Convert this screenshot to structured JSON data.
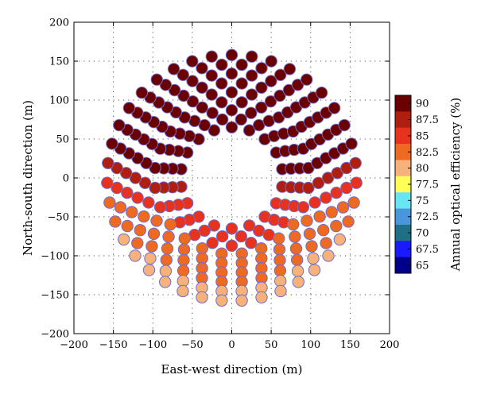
{
  "chart_data": {
    "type": "scatter",
    "title": "",
    "xlabel": "East-west direction (m)",
    "ylabel": "North-south direction (m)",
    "xlim": [
      -200,
      200
    ],
    "ylim": [
      -200,
      200
    ],
    "xticks": [
      -200,
      -150,
      -100,
      -50,
      0,
      50,
      100,
      150,
      200
    ],
    "yticks": [
      -200,
      -150,
      -100,
      -50,
      0,
      50,
      100,
      150,
      200
    ],
    "xtick_labels": [
      "−200",
      "−150",
      "−100",
      "−50",
      "0",
      "50",
      "100",
      "150",
      "200"
    ],
    "ytick_labels": [
      "−200",
      "−150",
      "−100",
      "−50",
      "0",
      "50",
      "100",
      "150",
      "200"
    ],
    "grid": "dotted",
    "marker_edge_color": "#6a6fd0",
    "layout": "radial-stagger",
    "rings": [
      {
        "radius": 65,
        "count": 18,
        "phase": 0
      },
      {
        "radius": 76,
        "count": 20,
        "phase": 0.5
      },
      {
        "radius": 87,
        "count": 22,
        "phase": 0
      },
      {
        "radius": 98,
        "count": 24,
        "phase": 0.5
      },
      {
        "radius": 110,
        "count": 27,
        "phase": 0
      },
      {
        "radius": 122,
        "count": 30,
        "phase": 0.5
      },
      {
        "radius": 134,
        "count": 33,
        "phase": 0
      },
      {
        "radius": 146,
        "count": 36,
        "phase": 0.5
      },
      {
        "radius": 158,
        "count": 39,
        "phase": 0
      }
    ],
    "colorbar": {
      "label": "Annual optical efficiency (%)",
      "ticks": [
        "90",
        "87.5",
        "85",
        "82.5",
        "80",
        "77.5",
        "75",
        "72.5",
        "70",
        "67.5",
        "65"
      ],
      "colors": [
        "#6b0000",
        "#b01e10",
        "#e8321e",
        "#ee6a22",
        "#f6b27a",
        "#ffff55",
        "#66e6f2",
        "#4a96dc",
        "#1f6f86",
        "#1a1aff",
        "#00008b"
      ]
    }
  }
}
